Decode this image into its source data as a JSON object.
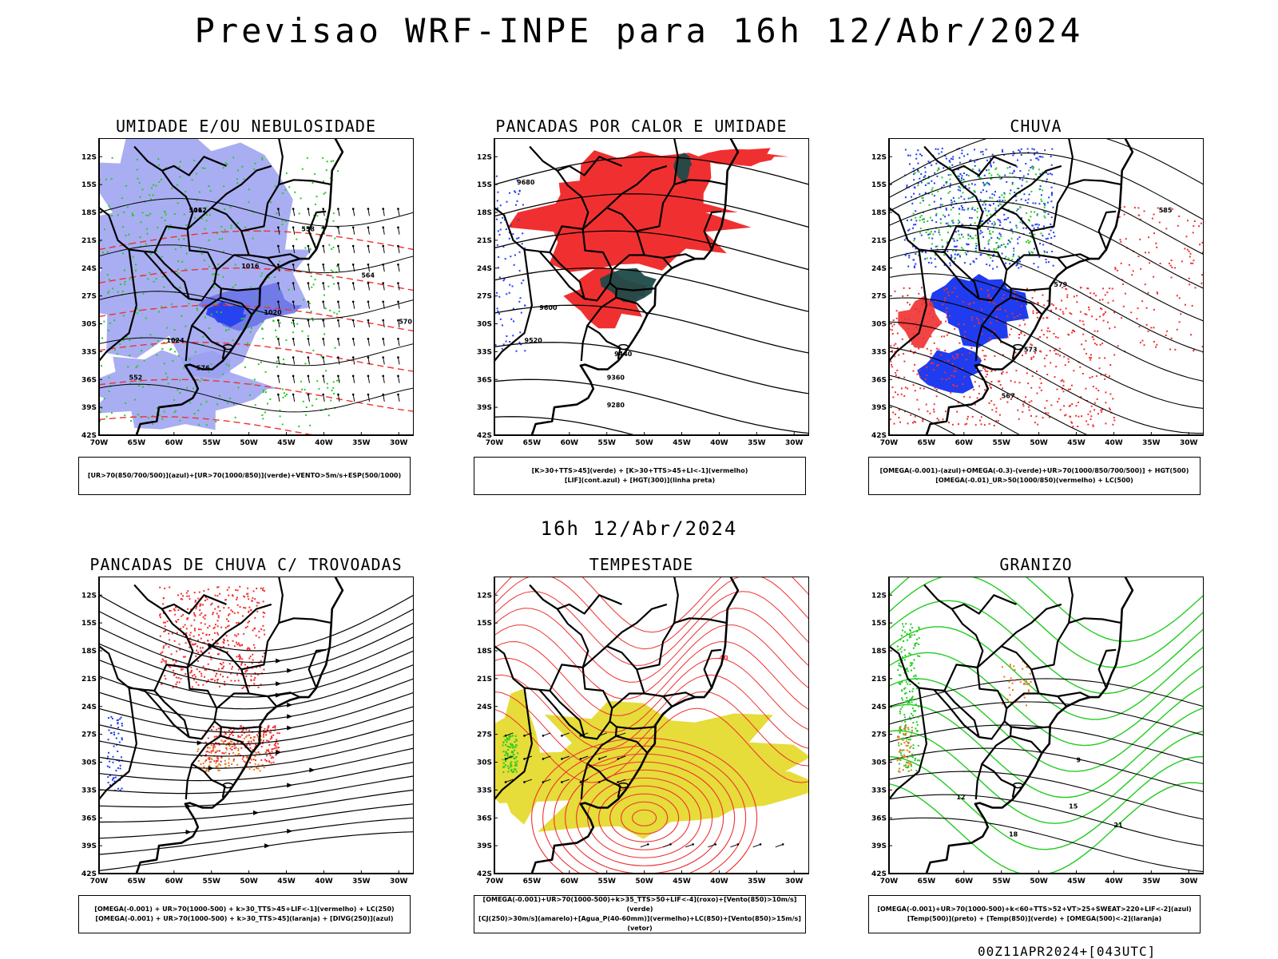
{
  "title": "Previsao WRF-INPE  para 16h 12/Abr/2024",
  "mid_title": "16h 12/Abr/2024",
  "footer": "00Z11APR2024+[043UTC]",
  "lat_labels": [
    "12S",
    "15S",
    "18S",
    "21S",
    "24S",
    "27S",
    "30S",
    "33S",
    "36S",
    "39S",
    "42S"
  ],
  "lon_labels": [
    "70W",
    "65W",
    "60W",
    "55W",
    "50W",
    "45W",
    "40W",
    "35W",
    "30W"
  ],
  "colors": {
    "blue_humidity": "#9aa0f0",
    "blue_strong": "#1f3cf0",
    "red": "#f03030",
    "green": "#22cc22",
    "dark_teal": "#1e4a48",
    "yellow": "#e6dc3a",
    "orange": "#e87820"
  },
  "panels": [
    {
      "title": "UMIDADE E/OU NEBULOSIDADE",
      "legend": [
        "[UR>70(850/700/500)](azul)+[UR>70(1000/850)](verde)+VENTO>5m/s+ESP(500/1000)"
      ],
      "contour_labels": [
        "1012",
        "1016",
        "1020",
        "1024",
        "576",
        "570",
        "564",
        "558",
        "552",
        "546"
      ]
    },
    {
      "title": "PANCADAS POR CALOR E UMIDADE",
      "legend": [
        "[K>30+TTS>45](verde) + [K>30+TTS>45+LI<-1](vermelho)",
        "[LIF](cont.azul) + [HGT(300)](linha preta)"
      ],
      "contour_labels": [
        "9680",
        "9600",
        "9520",
        "9440",
        "9360",
        "9280"
      ]
    },
    {
      "title": "CHUVA",
      "legend": [
        "[OMEGA(-0.001)-(azul)+OMEGA(-0.3)-(verde)+UR>70(1000/850/700/500)] + HGT(500)",
        "[OMEGA(-0.01)_UR>50(1000/850)(vermelho) + LC(500)"
      ],
      "contour_labels": [
        "585",
        "579",
        "573",
        "567"
      ]
    },
    {
      "title": "PANCADAS DE CHUVA C/ TROVOADAS",
      "legend": [
        "[OMEGA(-0.001) + UR>70(1000-500) + k>30_TTS>45+LIF<-1](vermelho) + LC(250)",
        "[OMEGA(-0.001) + UR>70(1000-500) + k>30_TTS>45](laranja) + [DIVG(250)](azul)"
      ],
      "contour_labels": []
    },
    {
      "title": "TEMPESTADE",
      "legend": [
        "[OMEGA(-0.001)+UR>70(1000-500)+k>35_TTS>50+LIF<-4](roxo)+[Vento(850)>10m/s](verde)",
        "[CJ(250)>30m/s](amarelo)+[Agua_P(40-60mm)](vermelho)+LC(850)+[Vento(850)>15m/s](vetor)"
      ],
      "contour_labels": [
        "40"
      ]
    },
    {
      "title": "GRANIZO",
      "legend": [
        "[OMEGA(-0.001)+UR>70(1000-500)+k<60+TTS>52+VT>25+SWEAT>220+LIF<-2](azul)",
        "[Temp(500)](preto) + [Temp(850)](verde) + [OMEGA(500)<-2](laranja)"
      ],
      "contour_labels": [
        "9",
        "12",
        "15",
        "18",
        "21"
      ]
    }
  ]
}
